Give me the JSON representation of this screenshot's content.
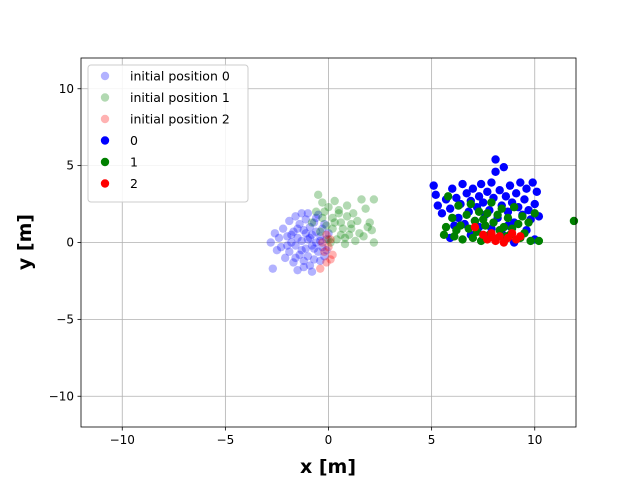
{
  "chart_data": {
    "type": "scatter",
    "xlabel": "x [m]",
    "ylabel": "y [m]",
    "xlim": [
      -12,
      12
    ],
    "ylim": [
      -12,
      12
    ],
    "xticks": [
      -10,
      -5,
      0,
      5,
      10
    ],
    "yticks": [
      -10,
      -5,
      0,
      5,
      10
    ],
    "grid": true,
    "legend_position": "top-left",
    "series": [
      {
        "name": "initial position 0",
        "color": "#0000ff",
        "alpha": 0.3,
        "points": [
          [
            -2.7,
            -1.7
          ],
          [
            -2.8,
            0.0
          ],
          [
            -2.6,
            0.6
          ],
          [
            -2.4,
            0.3
          ],
          [
            -2.3,
            -0.3
          ],
          [
            -2.2,
            0.9
          ],
          [
            -2.1,
            -1.0
          ],
          [
            -2.0,
            0.4
          ],
          [
            -1.9,
            -0.6
          ],
          [
            -1.9,
            1.4
          ],
          [
            -1.8,
            0.0
          ],
          [
            -1.7,
            -1.3
          ],
          [
            -1.7,
            0.7
          ],
          [
            -1.6,
            1.7
          ],
          [
            -1.6,
            -0.2
          ],
          [
            -1.5,
            -1.8
          ],
          [
            -1.5,
            0.3
          ],
          [
            -1.4,
            1.2
          ],
          [
            -1.4,
            -0.8
          ],
          [
            -1.3,
            1.9
          ],
          [
            -1.3,
            0.1
          ],
          [
            -1.2,
            -1.2
          ],
          [
            -1.2,
            0.8
          ],
          [
            -1.1,
            -0.4
          ],
          [
            -1.1,
            1.5
          ],
          [
            -1.0,
            0.2
          ],
          [
            -1.0,
            -0.9
          ],
          [
            -0.9,
            1.0
          ],
          [
            -0.9,
            -1.5
          ],
          [
            -0.8,
            0.5
          ],
          [
            -0.8,
            -0.2
          ],
          [
            -0.7,
            1.3
          ],
          [
            -0.7,
            -1.1
          ],
          [
            -0.6,
            0.0
          ],
          [
            -0.6,
            0.7
          ],
          [
            -0.5,
            -0.6
          ],
          [
            -0.5,
            1.8
          ],
          [
            -0.4,
            -1.2
          ],
          [
            -0.4,
            0.4
          ],
          [
            -0.3,
            0.9
          ],
          [
            -0.3,
            -0.3
          ],
          [
            -0.2,
            1.2
          ],
          [
            -0.2,
            -0.9
          ],
          [
            -0.1,
            0.2
          ],
          [
            -0.1,
            -0.5
          ],
          [
            0.0,
            0.6
          ],
          [
            -1.8,
            0.5
          ],
          [
            -2.0,
            -0.2
          ],
          [
            -1.3,
            -0.5
          ],
          [
            -0.9,
            0.3
          ],
          [
            -1.1,
            0.6
          ],
          [
            -1.5,
            0.9
          ],
          [
            -0.7,
            -0.4
          ],
          [
            -0.4,
            0.1
          ],
          [
            -1.6,
            -1.0
          ],
          [
            -2.5,
            -0.5
          ],
          [
            -1.0,
            1.9
          ],
          [
            -0.8,
            -1.9
          ],
          [
            -1.2,
            -1.6
          ],
          [
            -0.6,
            1.6
          ]
        ]
      },
      {
        "name": "initial position 1",
        "color": "#008000",
        "alpha": 0.3,
        "points": [
          [
            -0.5,
            3.1
          ],
          [
            -0.3,
            2.6
          ],
          [
            0.0,
            2.3
          ],
          [
            0.3,
            2.7
          ],
          [
            0.5,
            2.1
          ],
          [
            0.2,
            1.6
          ],
          [
            0.6,
            1.3
          ],
          [
            0.9,
            1.7
          ],
          [
            1.1,
            0.9
          ],
          [
            1.4,
            1.4
          ],
          [
            1.6,
            2.8
          ],
          [
            1.8,
            2.2
          ],
          [
            2.0,
            1.3
          ],
          [
            2.2,
            2.8
          ],
          [
            2.1,
            0.8
          ],
          [
            2.2,
            0.0
          ],
          [
            1.7,
            0.4
          ],
          [
            1.3,
            0.1
          ],
          [
            1.0,
            0.5
          ],
          [
            0.8,
            -0.1
          ],
          [
            0.6,
            0.5
          ],
          [
            0.4,
            0.2
          ],
          [
            0.2,
            0.9
          ],
          [
            -0.1,
            1.1
          ],
          [
            -0.3,
            1.6
          ],
          [
            -0.6,
            2.0
          ],
          [
            -0.8,
            1.3
          ],
          [
            -0.4,
            0.7
          ],
          [
            0.0,
            0.2
          ],
          [
            0.7,
            0.9
          ],
          [
            1.2,
            1.9
          ],
          [
            0.9,
            2.4
          ],
          [
            1.5,
            0.6
          ],
          [
            1.9,
            1.0
          ],
          [
            0.5,
            1.9
          ],
          [
            -0.2,
            2.0
          ],
          [
            0.1,
            0.0
          ],
          [
            0.8,
            0.3
          ],
          [
            1.1,
            1.2
          ],
          [
            0.3,
            1.3
          ]
        ]
      },
      {
        "name": "initial position 2",
        "color": "#ff0000",
        "alpha": 0.3,
        "points": [
          [
            -0.4,
            -1.7
          ],
          [
            -0.1,
            -1.3
          ],
          [
            0.1,
            -1.1
          ],
          [
            -0.2,
            -0.6
          ],
          [
            0.0,
            -0.3
          ],
          [
            -0.3,
            0.0
          ],
          [
            0.1,
            0.2
          ],
          [
            -0.1,
            0.5
          ],
          [
            0.2,
            -0.8
          ]
        ]
      },
      {
        "name": "0",
        "color": "#0000ff",
        "alpha": 1.0,
        "points": [
          [
            5.1,
            3.7
          ],
          [
            5.2,
            3.1
          ],
          [
            5.3,
            2.4
          ],
          [
            5.5,
            1.9
          ],
          [
            5.7,
            2.8
          ],
          [
            5.9,
            2.2
          ],
          [
            6.0,
            3.5
          ],
          [
            6.2,
            2.9
          ],
          [
            6.3,
            1.6
          ],
          [
            6.4,
            2.5
          ],
          [
            6.5,
            3.8
          ],
          [
            6.7,
            3.2
          ],
          [
            6.8,
            2.0
          ],
          [
            6.9,
            2.7
          ],
          [
            7.0,
            3.5
          ],
          [
            7.1,
            1.4
          ],
          [
            7.2,
            2.3
          ],
          [
            7.3,
            3.0
          ],
          [
            7.4,
            3.8
          ],
          [
            7.5,
            2.6
          ],
          [
            7.6,
            1.8
          ],
          [
            7.7,
            3.3
          ],
          [
            7.8,
            2.1
          ],
          [
            7.9,
            3.9
          ],
          [
            8.0,
            2.9
          ],
          [
            8.1,
            5.4
          ],
          [
            8.1,
            4.6
          ],
          [
            8.2,
            1.6
          ],
          [
            8.3,
            3.4
          ],
          [
            8.4,
            2.4
          ],
          [
            8.5,
            4.9
          ],
          [
            8.6,
            3.0
          ],
          [
            8.7,
            2.0
          ],
          [
            8.8,
            3.7
          ],
          [
            8.9,
            2.6
          ],
          [
            9.0,
            1.3
          ],
          [
            9.1,
            3.2
          ],
          [
            9.2,
            2.3
          ],
          [
            9.3,
            3.9
          ],
          [
            9.4,
            1.8
          ],
          [
            9.5,
            2.8
          ],
          [
            9.6,
            3.5
          ],
          [
            9.7,
            2.1
          ],
          [
            9.8,
            1.5
          ],
          [
            9.9,
            3.9
          ],
          [
            10.0,
            2.5
          ],
          [
            10.1,
            3.3
          ],
          [
            10.2,
            1.7
          ],
          [
            9.0,
            0.0
          ],
          [
            8.4,
            0.6
          ],
          [
            7.9,
            0.9
          ],
          [
            6.9,
            0.5
          ],
          [
            6.1,
            1.1
          ],
          [
            5.9,
            0.3
          ],
          [
            7.3,
            1.0
          ],
          [
            9.6,
            0.8
          ],
          [
            10.0,
            0.2
          ],
          [
            8.7,
            1.1
          ],
          [
            6.6,
            1.2
          ],
          [
            7.6,
            0.3
          ]
        ]
      },
      {
        "name": "1",
        "color": "#008000",
        "alpha": 1.0,
        "points": [
          [
            5.6,
            0.5
          ],
          [
            5.7,
            1.0
          ],
          [
            5.8,
            3.0
          ],
          [
            6.0,
            1.6
          ],
          [
            6.1,
            0.4
          ],
          [
            6.3,
            2.4
          ],
          [
            6.4,
            1.1
          ],
          [
            6.5,
            0.2
          ],
          [
            6.7,
            1.8
          ],
          [
            6.8,
            0.9
          ],
          [
            6.9,
            2.5
          ],
          [
            7.0,
            0.3
          ],
          [
            7.1,
            1.4
          ],
          [
            7.2,
            0.7
          ],
          [
            7.3,
            2.0
          ],
          [
            7.4,
            0.1
          ],
          [
            7.6,
            1.1
          ],
          [
            7.7,
            1.9
          ],
          [
            7.8,
            0.5
          ],
          [
            7.9,
            2.6
          ],
          [
            8.0,
            1.3
          ],
          [
            8.1,
            0.2
          ],
          [
            8.2,
            1.8
          ],
          [
            8.3,
            0.8
          ],
          [
            8.4,
            2.2
          ],
          [
            8.5,
            1.0
          ],
          [
            8.6,
            0.4
          ],
          [
            8.7,
            1.6
          ],
          [
            8.9,
            0.9
          ],
          [
            9.0,
            2.3
          ],
          [
            9.2,
            1.2
          ],
          [
            9.3,
            0.3
          ],
          [
            9.4,
            1.7
          ],
          [
            9.5,
            0.6
          ],
          [
            9.7,
            1.3
          ],
          [
            9.8,
            0.1
          ],
          [
            10.0,
            1.9
          ],
          [
            10.2,
            0.1
          ],
          [
            11.9,
            1.4
          ],
          [
            6.2,
            0.8
          ],
          [
            7.5,
            1.5
          ],
          [
            8.8,
            0.5
          ]
        ]
      },
      {
        "name": "2",
        "color": "#ff0000",
        "alpha": 1.0,
        "points": [
          [
            7.1,
            1.0
          ],
          [
            7.5,
            0.5
          ],
          [
            7.7,
            0.2
          ],
          [
            7.9,
            0.6
          ],
          [
            8.1,
            0.1
          ],
          [
            8.3,
            0.4
          ],
          [
            8.5,
            0.0
          ],
          [
            8.7,
            0.3
          ],
          [
            8.9,
            0.6
          ],
          [
            9.1,
            0.2
          ],
          [
            9.3,
            0.4
          ],
          [
            8.0,
            0.3
          ]
        ]
      }
    ]
  }
}
